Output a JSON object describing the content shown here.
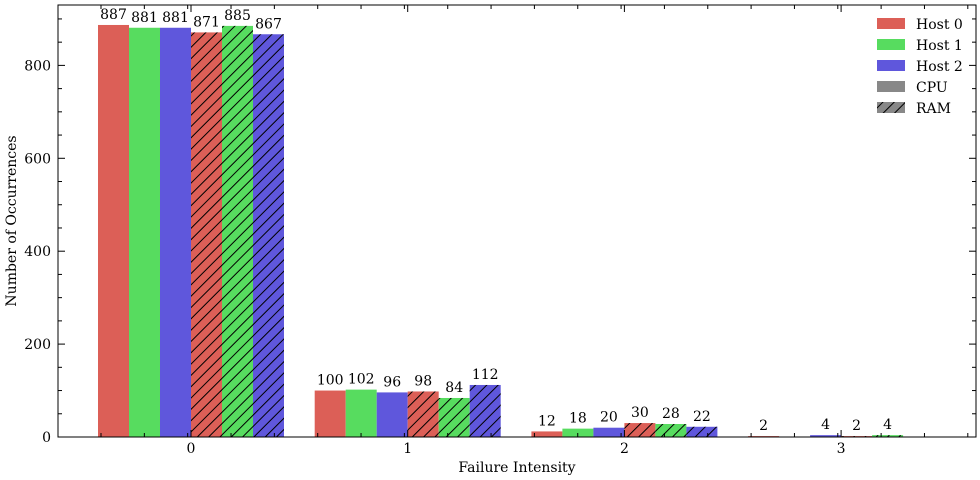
{
  "chart_data": {
    "type": "bar",
    "title": "",
    "xlabel": "Failure Intensity",
    "ylabel": "Number of Occurrences",
    "categories": [
      "0",
      "1",
      "2",
      "3"
    ],
    "ylim": [
      0,
      930
    ],
    "yticks": [
      0,
      200,
      400,
      600,
      800
    ],
    "grid": false,
    "legend_position": "top-right",
    "series": [
      {
        "name": "Host 0",
        "resource": "CPU",
        "color": "#dc5f57",
        "hatched": false,
        "values": [
          887,
          100,
          12,
          2
        ]
      },
      {
        "name": "Host 1",
        "resource": "CPU",
        "color": "#57dc5f",
        "hatched": false,
        "values": [
          881,
          102,
          18,
          null
        ]
      },
      {
        "name": "Host 2",
        "resource": "CPU",
        "color": "#5f57dc",
        "hatched": false,
        "values": [
          881,
          96,
          20,
          4
        ]
      },
      {
        "name": "Host 0",
        "resource": "RAM",
        "color": "#dc5f57",
        "hatched": true,
        "values": [
          871,
          98,
          30,
          2
        ]
      },
      {
        "name": "Host 1",
        "resource": "RAM",
        "color": "#57dc5f",
        "hatched": true,
        "values": [
          885,
          84,
          28,
          4
        ]
      },
      {
        "name": "Host 2",
        "resource": "RAM",
        "color": "#5f57dc",
        "hatched": true,
        "values": [
          867,
          112,
          22,
          null
        ]
      }
    ],
    "legend": [
      {
        "label": "Host 0",
        "color": "#dc5f57",
        "hatched": false
      },
      {
        "label": "Host 1",
        "color": "#57dc5f",
        "hatched": false
      },
      {
        "label": "Host 2",
        "color": "#5f57dc",
        "hatched": false
      },
      {
        "label": "CPU",
        "color": "#888888",
        "hatched": false
      },
      {
        "label": "RAM",
        "color": "#888888",
        "hatched": true
      }
    ]
  }
}
